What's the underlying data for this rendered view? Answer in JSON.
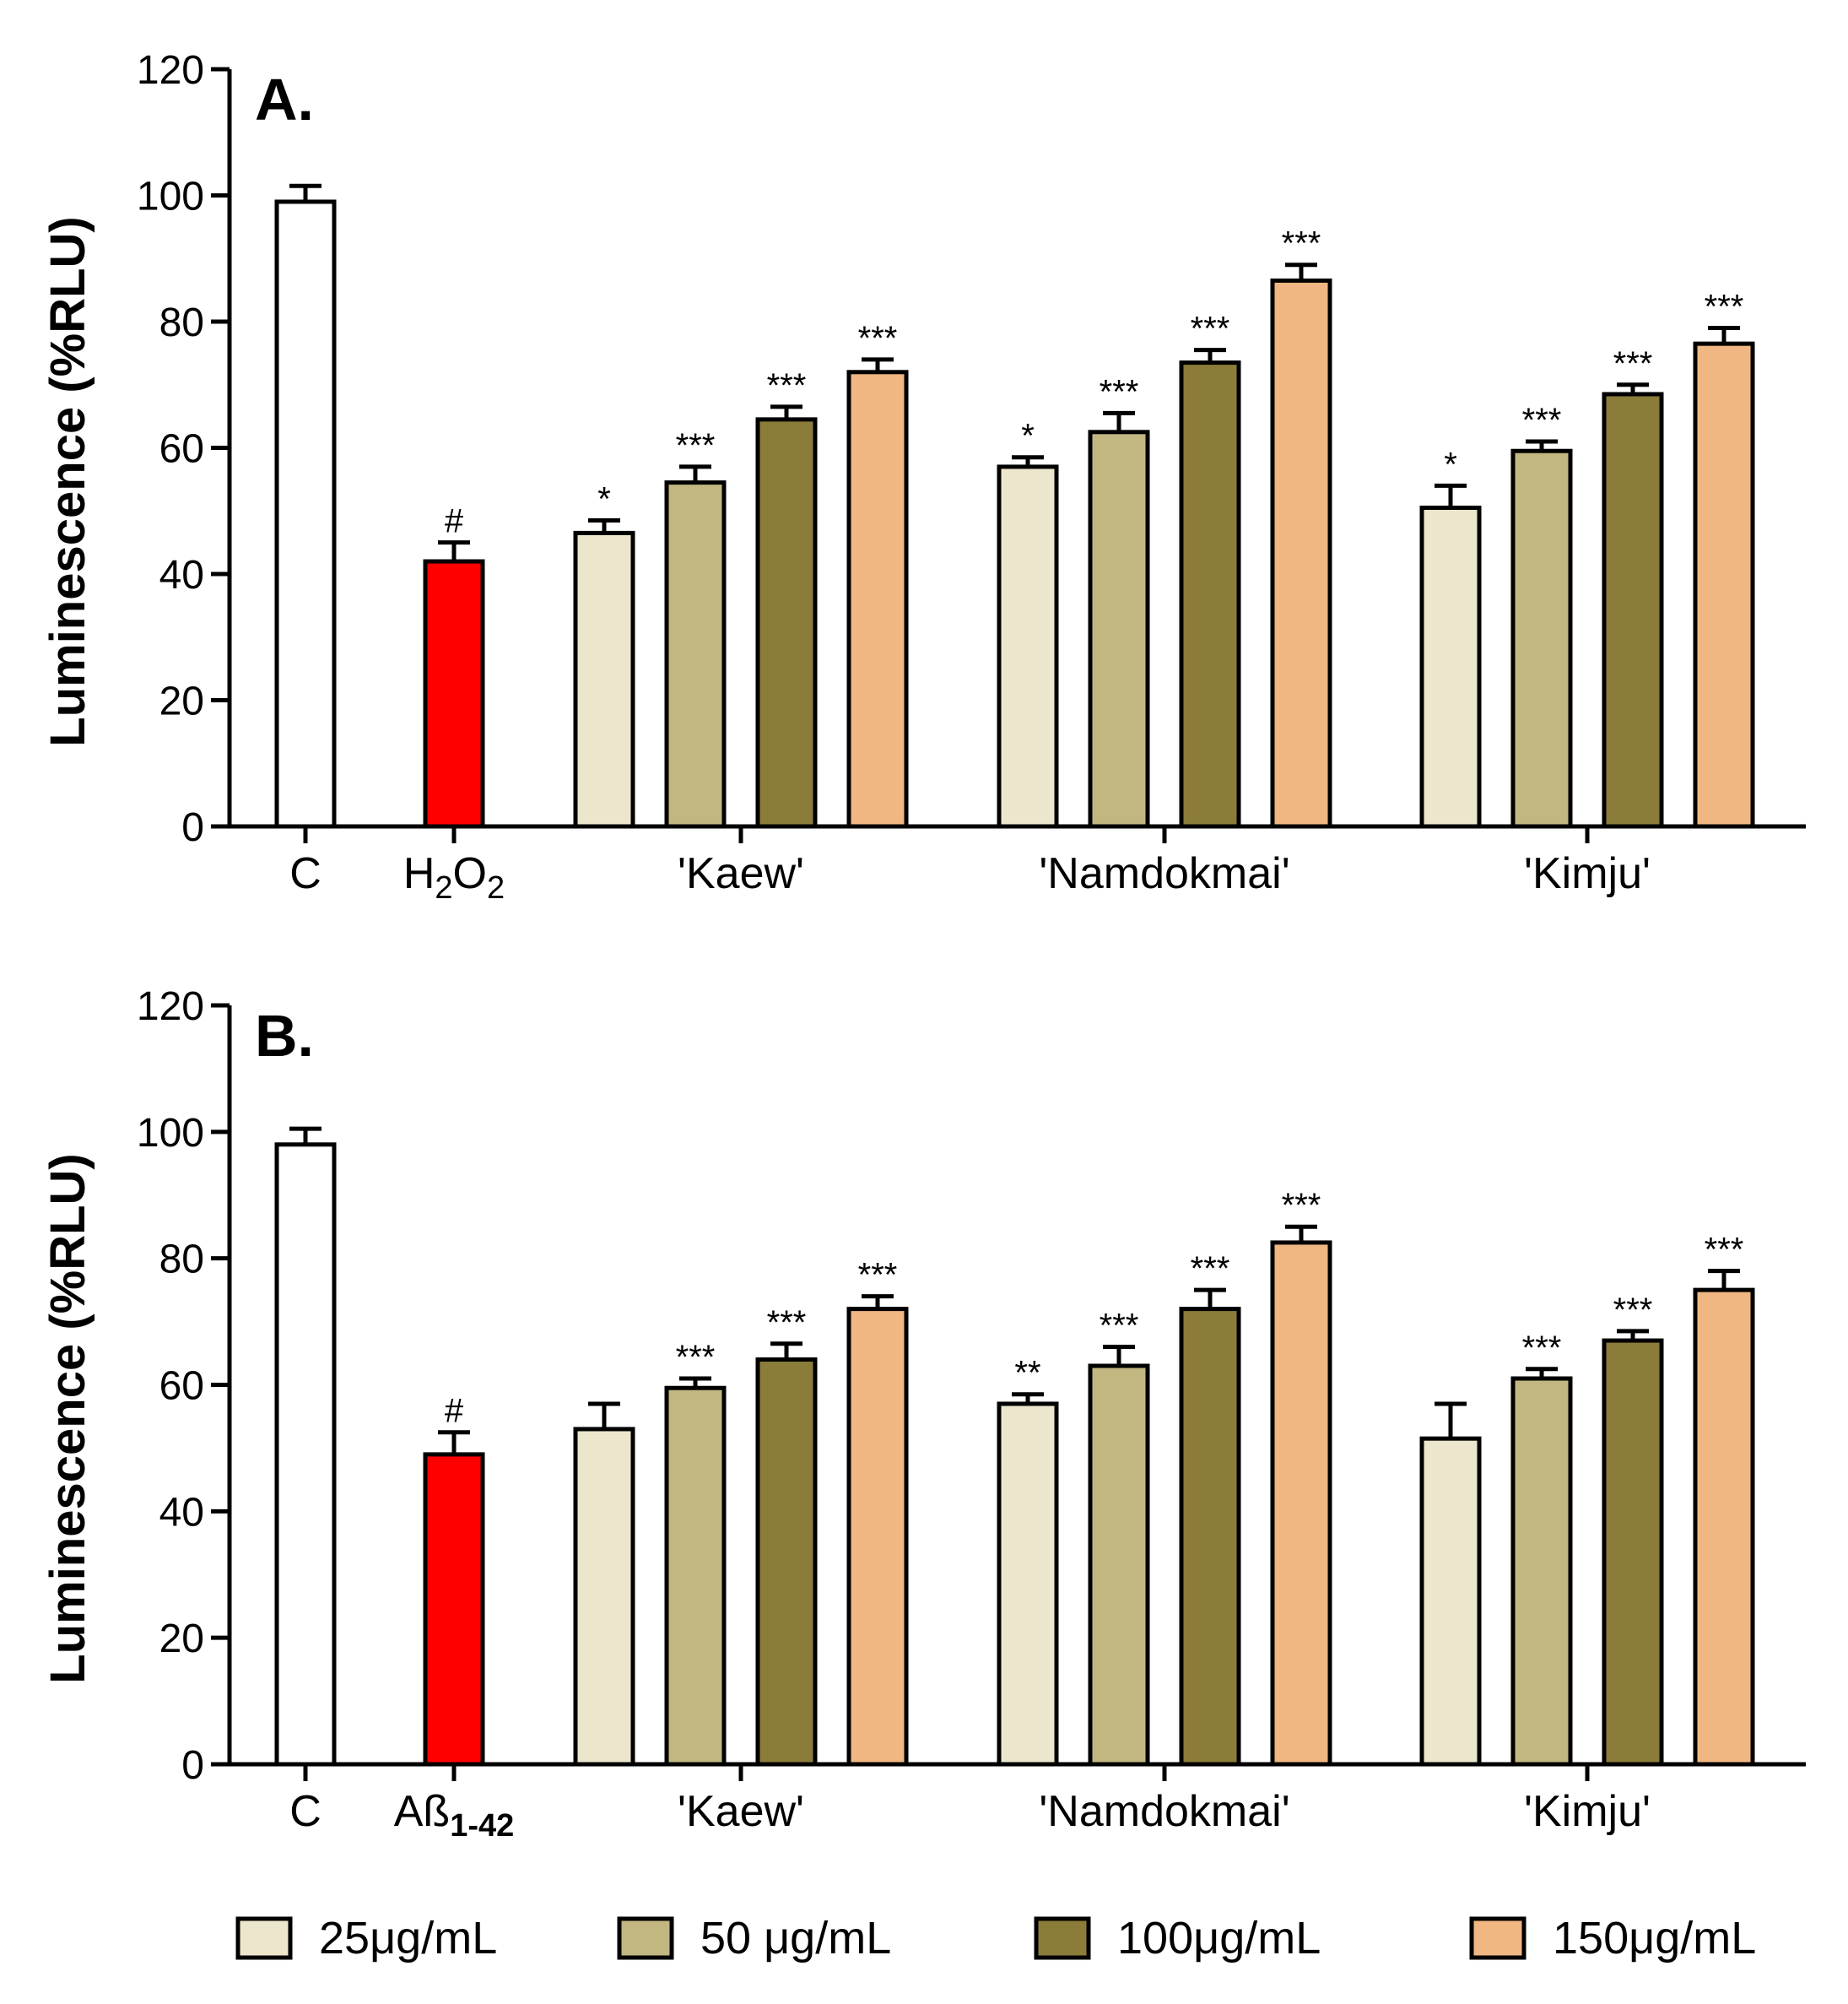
{
  "chart_data": [
    {
      "type": "bar",
      "panel_label": "A.",
      "ylabel": "Luminescence (%RLU)",
      "ylim": [
        0,
        120
      ],
      "yticks": [
        "0",
        "20",
        "40",
        "60",
        "80",
        "100",
        "120"
      ],
      "group_labels": [
        {
          "text": "C"
        },
        {
          "text": "H",
          "sub1": "2",
          "mid": "O",
          "sub2": "2"
        },
        {
          "text": "'Kaew'"
        },
        {
          "text": "'Namdokmai'"
        },
        {
          "text": "'Kimju'"
        }
      ],
      "bars": [
        {
          "group": "C",
          "series": "control",
          "value": 99,
          "error": 2.5,
          "sig": ""
        },
        {
          "group": "H2O2",
          "series": "toxin",
          "value": 42,
          "error": 3,
          "sig": "#"
        },
        {
          "group": "'Kaew'",
          "series": "25μg/mL",
          "value": 46.5,
          "error": 2,
          "sig": "*"
        },
        {
          "group": "'Kaew'",
          "series": "50 μg/mL",
          "value": 54.5,
          "error": 2.5,
          "sig": "***"
        },
        {
          "group": "'Kaew'",
          "series": "100μg/mL",
          "value": 64.5,
          "error": 2,
          "sig": "***"
        },
        {
          "group": "'Kaew'",
          "series": "150μg/mL",
          "value": 72,
          "error": 2,
          "sig": "***"
        },
        {
          "group": "'Namdokmai'",
          "series": "25μg/mL",
          "value": 57,
          "error": 1.5,
          "sig": "*"
        },
        {
          "group": "'Namdokmai'",
          "series": "50 μg/mL",
          "value": 62.5,
          "error": 3,
          "sig": "***"
        },
        {
          "group": "'Namdokmai'",
          "series": "100μg/mL",
          "value": 73.5,
          "error": 2,
          "sig": "***"
        },
        {
          "group": "'Namdokmai'",
          "series": "150μg/mL",
          "value": 86.5,
          "error": 2.5,
          "sig": "***"
        },
        {
          "group": "'Kimju'",
          "series": "25μg/mL",
          "value": 50.5,
          "error": 3.5,
          "sig": "*"
        },
        {
          "group": "'Kimju'",
          "series": "50 μg/mL",
          "value": 59.5,
          "error": 1.5,
          "sig": "***"
        },
        {
          "group": "'Kimju'",
          "series": "100μg/mL",
          "value": 68.5,
          "error": 1.5,
          "sig": "***"
        },
        {
          "group": "'Kimju'",
          "series": "150μg/mL",
          "value": 76.5,
          "error": 2.5,
          "sig": "***"
        }
      ]
    },
    {
      "type": "bar",
      "panel_label": "B.",
      "ylabel": "Luminescence (%RLU)",
      "ylim": [
        0,
        120
      ],
      "yticks": [
        "0",
        "20",
        "40",
        "60",
        "80",
        "100",
        "120"
      ],
      "group_labels": [
        {
          "text": "C"
        },
        {
          "text": "Aß",
          "sub1": "1-42"
        },
        {
          "text": "'Kaew'"
        },
        {
          "text": "'Namdokmai'"
        },
        {
          "text": "'Kimju'"
        }
      ],
      "bars": [
        {
          "group": "C",
          "series": "control",
          "value": 98,
          "error": 2.5,
          "sig": ""
        },
        {
          "group": "Aß1-42",
          "series": "toxin",
          "value": 49,
          "error": 3.5,
          "sig": "#"
        },
        {
          "group": "'Kaew'",
          "series": "25μg/mL",
          "value": 53,
          "error": 4,
          "sig": ""
        },
        {
          "group": "'Kaew'",
          "series": "50 μg/mL",
          "value": 59.5,
          "error": 1.5,
          "sig": "***"
        },
        {
          "group": "'Kaew'",
          "series": "100μg/mL",
          "value": 64,
          "error": 2.5,
          "sig": "***"
        },
        {
          "group": "'Kaew'",
          "series": "150μg/mL",
          "value": 72,
          "error": 2,
          "sig": "***"
        },
        {
          "group": "'Namdokmai'",
          "series": "25μg/mL",
          "value": 57,
          "error": 1.5,
          "sig": "**"
        },
        {
          "group": "'Namdokmai'",
          "series": "50 μg/mL",
          "value": 63,
          "error": 3,
          "sig": "***"
        },
        {
          "group": "'Namdokmai'",
          "series": "100μg/mL",
          "value": 72,
          "error": 3,
          "sig": "***"
        },
        {
          "group": "'Namdokmai'",
          "series": "150μg/mL",
          "value": 82.5,
          "error": 2.5,
          "sig": "***"
        },
        {
          "group": "'Kimju'",
          "series": "25μg/mL",
          "value": 51.5,
          "error": 5.5,
          "sig": ""
        },
        {
          "group": "'Kimju'",
          "series": "50 μg/mL",
          "value": 61,
          "error": 1.5,
          "sig": "***"
        },
        {
          "group": "'Kimju'",
          "series": "100μg/mL",
          "value": 67,
          "error": 1.5,
          "sig": "***"
        },
        {
          "group": "'Kimju'",
          "series": "150μg/mL",
          "value": 75,
          "error": 3,
          "sig": "***"
        }
      ]
    }
  ],
  "series_colors": {
    "control": "#ffffff",
    "toxin": "#ff0000",
    "25μg/mL": "#ece6cc",
    "50 μg/mL": "#c2b781",
    "100μg/mL": "#8b7c3a",
    "150μg/mL": "#f1b782"
  },
  "legend": [
    {
      "label": "25μg/mL",
      "color": "#ece6cc"
    },
    {
      "label": "50 μg/mL",
      "color": "#c2b781"
    },
    {
      "label": "100μg/mL",
      "color": "#8b7c3a"
    },
    {
      "label": "150μg/mL",
      "color": "#f1b782"
    }
  ]
}
